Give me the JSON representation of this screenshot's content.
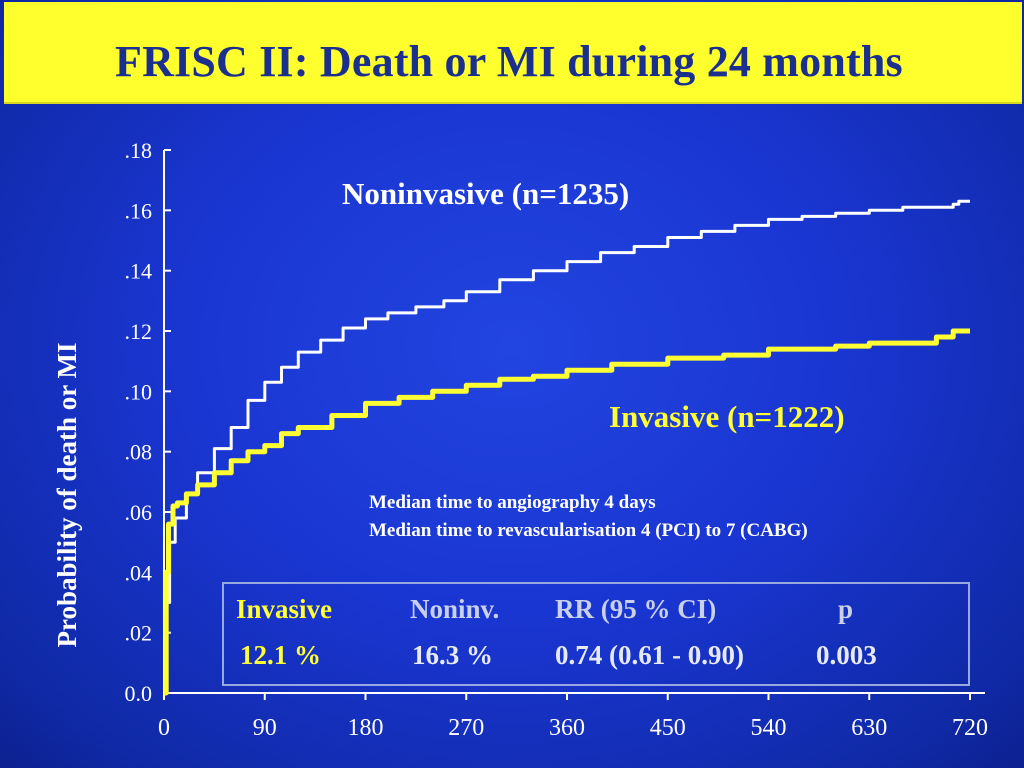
{
  "title": "FRISC II: Death or MI during 24 months",
  "chart_data": {
    "type": "line",
    "title": "FRISC II: Death or MI during 24 months",
    "xlabel": "",
    "ylabel": "Probability of death or MI",
    "xlim": [
      0,
      720
    ],
    "ylim": [
      0,
      0.18
    ],
    "x_ticks": [
      0,
      90,
      180,
      270,
      360,
      450,
      540,
      630,
      720
    ],
    "x_tick_labels": [
      "0",
      "90",
      "180",
      "270",
      "360",
      "450",
      "540",
      "630",
      "720"
    ],
    "y_ticks": [
      0,
      0.02,
      0.04,
      0.06,
      0.08,
      0.1,
      0.12,
      0.14,
      0.16,
      0.18
    ],
    "y_tick_labels": [
      "0.0",
      ".02",
      ".04",
      ".06",
      ".08",
      ".10",
      ".12",
      ".14",
      ".16",
      ".18"
    ],
    "grid": false,
    "series": [
      {
        "name": "Noninvasive (n=1235)",
        "color": "#ffffff",
        "x": [
          0,
          2,
          5,
          10,
          20,
          30,
          45,
          60,
          75,
          90,
          105,
          120,
          140,
          160,
          180,
          200,
          225,
          250,
          270,
          300,
          330,
          360,
          390,
          420,
          450,
          480,
          510,
          540,
          570,
          600,
          630,
          660,
          690,
          705,
          710,
          720
        ],
        "y": [
          0,
          0.03,
          0.05,
          0.058,
          0.066,
          0.073,
          0.081,
          0.088,
          0.097,
          0.103,
          0.108,
          0.113,
          0.117,
          0.121,
          0.124,
          0.126,
          0.128,
          0.13,
          0.133,
          0.137,
          0.14,
          0.143,
          0.146,
          0.148,
          0.151,
          0.153,
          0.155,
          0.157,
          0.158,
          0.159,
          0.16,
          0.161,
          0.161,
          0.162,
          0.163,
          0.163
        ]
      },
      {
        "name": "Invasive (n=1222)",
        "color": "#ffff33",
        "x": [
          0,
          2,
          4,
          8,
          12,
          20,
          30,
          45,
          60,
          75,
          90,
          105,
          120,
          150,
          180,
          210,
          240,
          270,
          300,
          330,
          360,
          400,
          450,
          500,
          540,
          600,
          630,
          660,
          690,
          705,
          720
        ],
        "y": [
          0,
          0.04,
          0.056,
          0.062,
          0.063,
          0.066,
          0.069,
          0.073,
          0.077,
          0.08,
          0.082,
          0.086,
          0.088,
          0.092,
          0.096,
          0.098,
          0.1,
          0.102,
          0.104,
          0.105,
          0.107,
          0.109,
          0.111,
          0.112,
          0.114,
          0.115,
          0.116,
          0.116,
          0.118,
          0.12,
          0.12
        ]
      }
    ]
  },
  "annotations": {
    "line1": "Median time to angiography 4 days",
    "line2": "Median time to revascularisation 4 (PCI) to 7 (CABG)"
  },
  "stats_table": {
    "headers": [
      "Invasive",
      "Noninv.",
      "RR (95 % CI)",
      "p"
    ],
    "values": [
      "12.1 %",
      "16.3 %",
      "0.74 (0.61 - 0.90)",
      "0.003"
    ]
  }
}
